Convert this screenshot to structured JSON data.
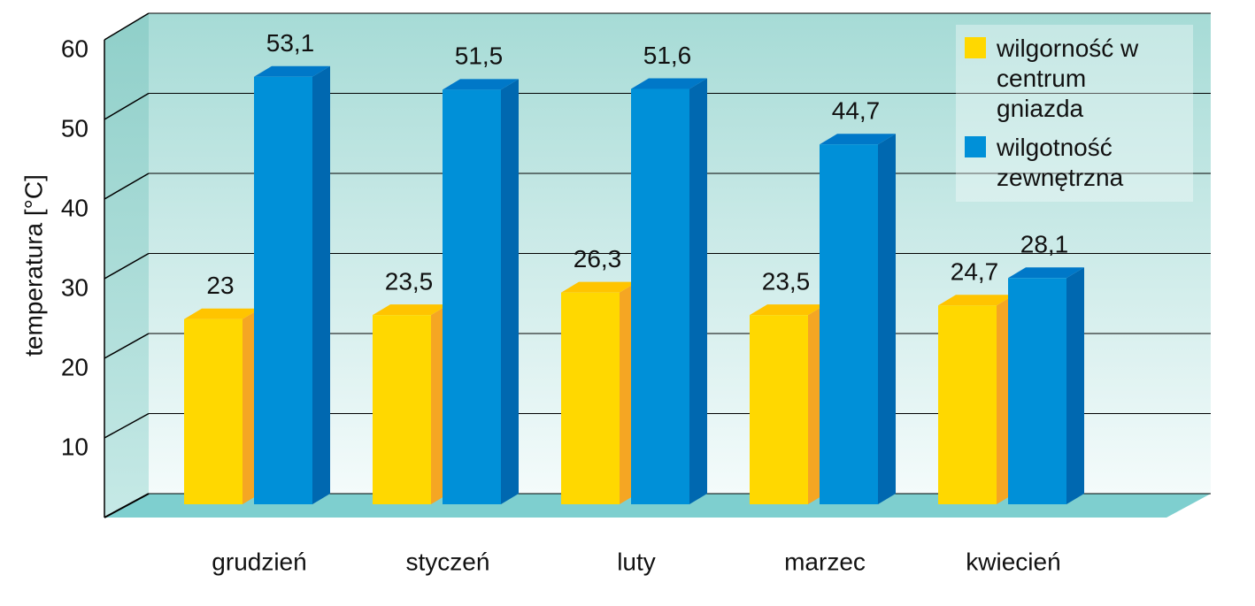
{
  "chart_data": {
    "type": "bar3d",
    "ylabel": "temperatura [°C]",
    "categories": [
      "grudzień",
      "styczeń",
      "luty",
      "marzec",
      "kwiecień"
    ],
    "series": [
      {
        "name": "wilgorność w centrum gniazda",
        "color": "#ffd800",
        "values": [
          23,
          23.5,
          26.3,
          23.5,
          24.7
        ],
        "value_labels": [
          "23",
          "23,5",
          "26,3",
          "23,5",
          "24,7"
        ]
      },
      {
        "name": "wilgotność zewnętrzna",
        "color": "#0090d8",
        "values": [
          53.1,
          51.5,
          51.6,
          44.7,
          28.1
        ],
        "value_labels": [
          "53,1",
          "51,5",
          "51,6",
          "44,7",
          "28,1"
        ]
      }
    ],
    "ylim": [
      0,
      60
    ],
    "yticks": [
      10,
      20,
      30,
      40,
      50,
      60
    ],
    "grid": true,
    "legend": "top-right"
  }
}
